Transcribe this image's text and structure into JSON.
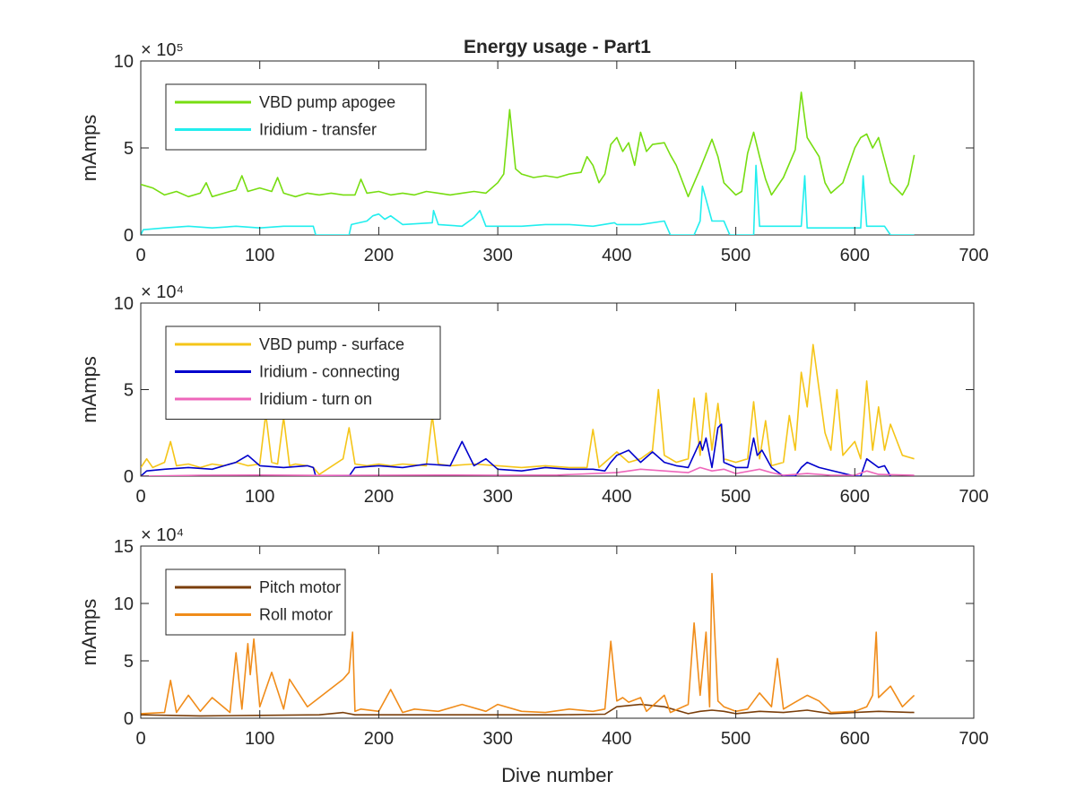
{
  "chart_data": [
    {
      "type": "line",
      "title": "Energy usage - Part1",
      "xlabel": "",
      "ylabel": "mAmps",
      "xlim": [
        0,
        700
      ],
      "ylim": [
        0,
        1000000
      ],
      "y_exponent_label": "× 10⁵",
      "x_ticks": [
        "0",
        "100",
        "200",
        "300",
        "400",
        "500",
        "600",
        "700"
      ],
      "y_ticks": [
        "0",
        "5",
        "10"
      ],
      "y_tick_values": [
        0,
        500000,
        1000000
      ],
      "legend_position": "top-left",
      "grid": false,
      "series": [
        {
          "name": "VBD pump apogee",
          "color": "#77dd11",
          "x": [
            0,
            10,
            20,
            30,
            40,
            50,
            55,
            60,
            70,
            80,
            85,
            90,
            100,
            110,
            115,
            120,
            125,
            130,
            140,
            150,
            160,
            170,
            180,
            185,
            190,
            200,
            210,
            220,
            230,
            240,
            250,
            260,
            270,
            280,
            290,
            300,
            305,
            310,
            315,
            320,
            330,
            340,
            350,
            360,
            370,
            375,
            380,
            385,
            390,
            395,
            400,
            405,
            410,
            415,
            420,
            425,
            430,
            440,
            445,
            450,
            460,
            470,
            480,
            485,
            490,
            500,
            505,
            510,
            515,
            520,
            525,
            530,
            540,
            545,
            550,
            555,
            560,
            570,
            575,
            580,
            590,
            600,
            605,
            610,
            615,
            620,
            630,
            640,
            645,
            650
          ],
          "values": [
            290000,
            270000,
            230000,
            250000,
            220000,
            240000,
            300000,
            220000,
            240000,
            260000,
            340000,
            250000,
            270000,
            250000,
            330000,
            240000,
            230000,
            220000,
            240000,
            230000,
            240000,
            230000,
            230000,
            320000,
            240000,
            250000,
            230000,
            240000,
            230000,
            250000,
            240000,
            230000,
            240000,
            250000,
            240000,
            300000,
            350000,
            720000,
            380000,
            350000,
            330000,
            340000,
            330000,
            350000,
            360000,
            450000,
            400000,
            300000,
            350000,
            520000,
            560000,
            480000,
            530000,
            400000,
            590000,
            480000,
            520000,
            530000,
            460000,
            400000,
            220000,
            380000,
            550000,
            450000,
            300000,
            230000,
            250000,
            470000,
            590000,
            450000,
            320000,
            230000,
            330000,
            410000,
            490000,
            820000,
            560000,
            450000,
            300000,
            240000,
            300000,
            500000,
            560000,
            580000,
            500000,
            560000,
            300000,
            230000,
            290000,
            460000
          ]
        },
        {
          "name": "Iridium - transfer",
          "color": "#22eeee",
          "x": [
            0,
            2,
            20,
            40,
            60,
            80,
            100,
            120,
            145,
            147,
            175,
            177,
            190,
            195,
            200,
            205,
            210,
            220,
            245,
            246,
            250,
            270,
            280,
            285,
            290,
            300,
            320,
            340,
            360,
            380,
            398,
            400,
            420,
            440,
            445,
            465,
            470,
            472,
            480,
            490,
            495,
            515,
            517,
            520,
            530,
            555,
            558,
            560,
            570,
            600,
            605,
            607,
            610,
            625,
            630,
            650
          ],
          "values": [
            0,
            30000,
            40000,
            50000,
            40000,
            50000,
            40000,
            50000,
            50000,
            0,
            0,
            60000,
            80000,
            110000,
            120000,
            90000,
            110000,
            60000,
            70000,
            140000,
            60000,
            50000,
            100000,
            140000,
            50000,
            50000,
            50000,
            60000,
            60000,
            50000,
            70000,
            60000,
            60000,
            80000,
            0,
            0,
            80000,
            280000,
            80000,
            80000,
            0,
            0,
            400000,
            50000,
            50000,
            50000,
            340000,
            40000,
            40000,
            40000,
            40000,
            340000,
            50000,
            50000,
            0,
            0
          ]
        }
      ]
    },
    {
      "type": "line",
      "title": "",
      "xlabel": "",
      "ylabel": "mAmps",
      "xlim": [
        0,
        700
      ],
      "ylim": [
        0,
        100000
      ],
      "y_exponent_label": "× 10⁴",
      "x_ticks": [
        "0",
        "100",
        "200",
        "300",
        "400",
        "500",
        "600",
        "700"
      ],
      "y_ticks": [
        "0",
        "5",
        "10"
      ],
      "y_tick_values": [
        0,
        50000,
        100000
      ],
      "legend_position": "top-left",
      "grid": false,
      "series": [
        {
          "name": "VBD pump - surface",
          "color": "#f5c518",
          "x": [
            0,
            5,
            10,
            20,
            25,
            30,
            40,
            50,
            60,
            70,
            80,
            90,
            100,
            105,
            110,
            115,
            120,
            125,
            130,
            140,
            145,
            150,
            170,
            175,
            180,
            190,
            200,
            210,
            220,
            240,
            245,
            250,
            260,
            280,
            300,
            320,
            340,
            360,
            375,
            380,
            385,
            390,
            400,
            410,
            420,
            430,
            435,
            440,
            450,
            460,
            465,
            470,
            475,
            480,
            485,
            490,
            500,
            510,
            515,
            520,
            525,
            530,
            540,
            545,
            550,
            555,
            560,
            565,
            570,
            575,
            580,
            585,
            590,
            600,
            605,
            610,
            615,
            620,
            625,
            630,
            640,
            650
          ],
          "values": [
            5000,
            10000,
            5000,
            8000,
            20000,
            6000,
            7000,
            5000,
            7000,
            6000,
            8000,
            6000,
            7000,
            36000,
            8000,
            7000,
            34000,
            6000,
            7000,
            6000,
            5000,
            1000,
            10000,
            28000,
            7000,
            6000,
            7000,
            6000,
            7000,
            6000,
            35000,
            7000,
            6000,
            7000,
            6000,
            5000,
            6000,
            5000,
            5000,
            27000,
            5000,
            8000,
            14000,
            8000,
            10000,
            15000,
            50000,
            12000,
            8000,
            10000,
            45000,
            12000,
            48000,
            15000,
            42000,
            10000,
            8000,
            10000,
            43000,
            10000,
            32000,
            6000,
            8000,
            35000,
            15000,
            60000,
            40000,
            76000,
            50000,
            25000,
            15000,
            50000,
            12000,
            20000,
            10000,
            55000,
            15000,
            40000,
            15000,
            30000,
            12000,
            10000
          ]
        },
        {
          "name": "Iridium - connecting",
          "color": "#0000cc",
          "x": [
            0,
            5,
            20,
            40,
            60,
            80,
            90,
            100,
            120,
            140,
            145,
            147,
            175,
            180,
            200,
            220,
            240,
            260,
            270,
            280,
            290,
            300,
            320,
            340,
            360,
            380,
            390,
            395,
            400,
            410,
            420,
            430,
            440,
            450,
            460,
            470,
            472,
            475,
            480,
            485,
            488,
            490,
            500,
            510,
            515,
            518,
            522,
            530,
            540,
            550,
            555,
            560,
            570,
            600,
            605,
            610,
            620,
            625,
            630
          ],
          "values": [
            0,
            3000,
            4000,
            5000,
            4000,
            8000,
            12000,
            6000,
            5000,
            6000,
            5000,
            0,
            0,
            5000,
            6000,
            5000,
            7000,
            6000,
            20000,
            6000,
            10000,
            4000,
            3000,
            5000,
            4000,
            4000,
            3000,
            8000,
            12000,
            15000,
            8000,
            14000,
            8000,
            6000,
            5000,
            20000,
            15000,
            22000,
            5000,
            28000,
            30000,
            8000,
            5000,
            5000,
            22000,
            12000,
            15000,
            5000,
            0,
            0,
            5000,
            8000,
            5000,
            0,
            0,
            10000,
            5000,
            6000,
            0
          ]
        },
        {
          "name": "Iridium - turn on",
          "color": "#ee66bb",
          "x": [
            0,
            50,
            100,
            150,
            200,
            250,
            300,
            350,
            400,
            420,
            440,
            460,
            470,
            480,
            490,
            500,
            520,
            530,
            540,
            560,
            580,
            600,
            610,
            620,
            650
          ],
          "values": [
            0,
            500,
            600,
            400,
            500,
            600,
            500,
            600,
            2000,
            4000,
            3000,
            2000,
            5000,
            3000,
            4000,
            1500,
            4000,
            2000,
            500,
            1500,
            500,
            500,
            3000,
            1000,
            500
          ]
        }
      ]
    },
    {
      "type": "line",
      "title": "",
      "xlabel": "Dive number",
      "ylabel": "mAmps",
      "xlim": [
        0,
        700
      ],
      "ylim": [
        0,
        150000
      ],
      "y_exponent_label": "× 10⁴",
      "x_ticks": [
        "0",
        "100",
        "200",
        "300",
        "400",
        "500",
        "600",
        "700"
      ],
      "y_ticks": [
        "0",
        "5",
        "10",
        "15"
      ],
      "y_tick_values": [
        0,
        50000,
        100000,
        150000
      ],
      "legend_position": "top-left",
      "grid": false,
      "series": [
        {
          "name": "Pitch motor",
          "color": "#7a3e0a",
          "x": [
            0,
            50,
            100,
            150,
            170,
            180,
            200,
            250,
            300,
            350,
            390,
            400,
            420,
            440,
            460,
            470,
            480,
            490,
            500,
            520,
            540,
            560,
            580,
            600,
            620,
            650
          ],
          "values": [
            3000,
            2000,
            2500,
            3000,
            5000,
            3000,
            3000,
            3000,
            3000,
            3000,
            3500,
            10000,
            12000,
            10000,
            4000,
            6000,
            7000,
            6000,
            4000,
            6000,
            5000,
            7000,
            4000,
            5000,
            6000,
            5000
          ]
        },
        {
          "name": "Roll motor",
          "color": "#f08c1a",
          "x": [
            0,
            20,
            25,
            30,
            40,
            50,
            60,
            75,
            80,
            85,
            90,
            92,
            95,
            100,
            110,
            120,
            125,
            140,
            150,
            170,
            175,
            178,
            180,
            185,
            200,
            210,
            220,
            230,
            250,
            270,
            290,
            300,
            320,
            340,
            360,
            380,
            390,
            395,
            400,
            405,
            410,
            420,
            425,
            440,
            445,
            460,
            465,
            470,
            475,
            478,
            480,
            485,
            490,
            500,
            510,
            520,
            530,
            535,
            540,
            550,
            560,
            570,
            580,
            600,
            610,
            615,
            618,
            620,
            630,
            640,
            650
          ],
          "values": [
            4000,
            5000,
            33000,
            5000,
            20000,
            6000,
            18000,
            5000,
            57000,
            8000,
            65000,
            38000,
            69000,
            10000,
            40000,
            8000,
            34000,
            10000,
            18000,
            34000,
            40000,
            75000,
            6000,
            8000,
            6000,
            25000,
            5000,
            8000,
            6000,
            12000,
            6000,
            12000,
            6000,
            5000,
            8000,
            6000,
            8000,
            67000,
            15000,
            18000,
            14000,
            18000,
            6000,
            20000,
            5000,
            12000,
            83000,
            20000,
            75000,
            10000,
            126000,
            15000,
            10000,
            6000,
            8000,
            22000,
            10000,
            52000,
            8000,
            14000,
            20000,
            15000,
            5000,
            6000,
            10000,
            20000,
            75000,
            18000,
            28000,
            10000,
            20000
          ]
        }
      ]
    }
  ]
}
